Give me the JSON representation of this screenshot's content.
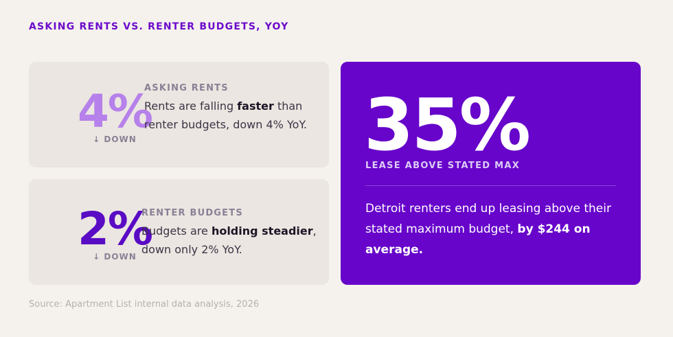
{
  "header": {
    "title": "ASKING RENTS VS. RENTER BUDGETS, YOY"
  },
  "cards": [
    {
      "stat": "4%",
      "direction": "↓ DOWN",
      "label": "ASKING RENTS",
      "text": [
        "Rents are falling ",
        "faster",
        " than renter budgets, down 4% YoY."
      ]
    },
    {
      "stat": "2%",
      "direction": "↓ DOWN",
      "label": "RENTER BUDGETS",
      "text": [
        "Budgets are ",
        "holding steadier",
        ", down only 2% YoY."
      ]
    }
  ],
  "highlight": {
    "stat": "35%",
    "label": "LEASE ABOVE STATED MAX",
    "text": [
      "Detroit renters end up leasing above their stated maximum budget, ",
      "by $244 on average."
    ]
  },
  "source": "Source: Apartment List internal data analysis, 2026"
}
